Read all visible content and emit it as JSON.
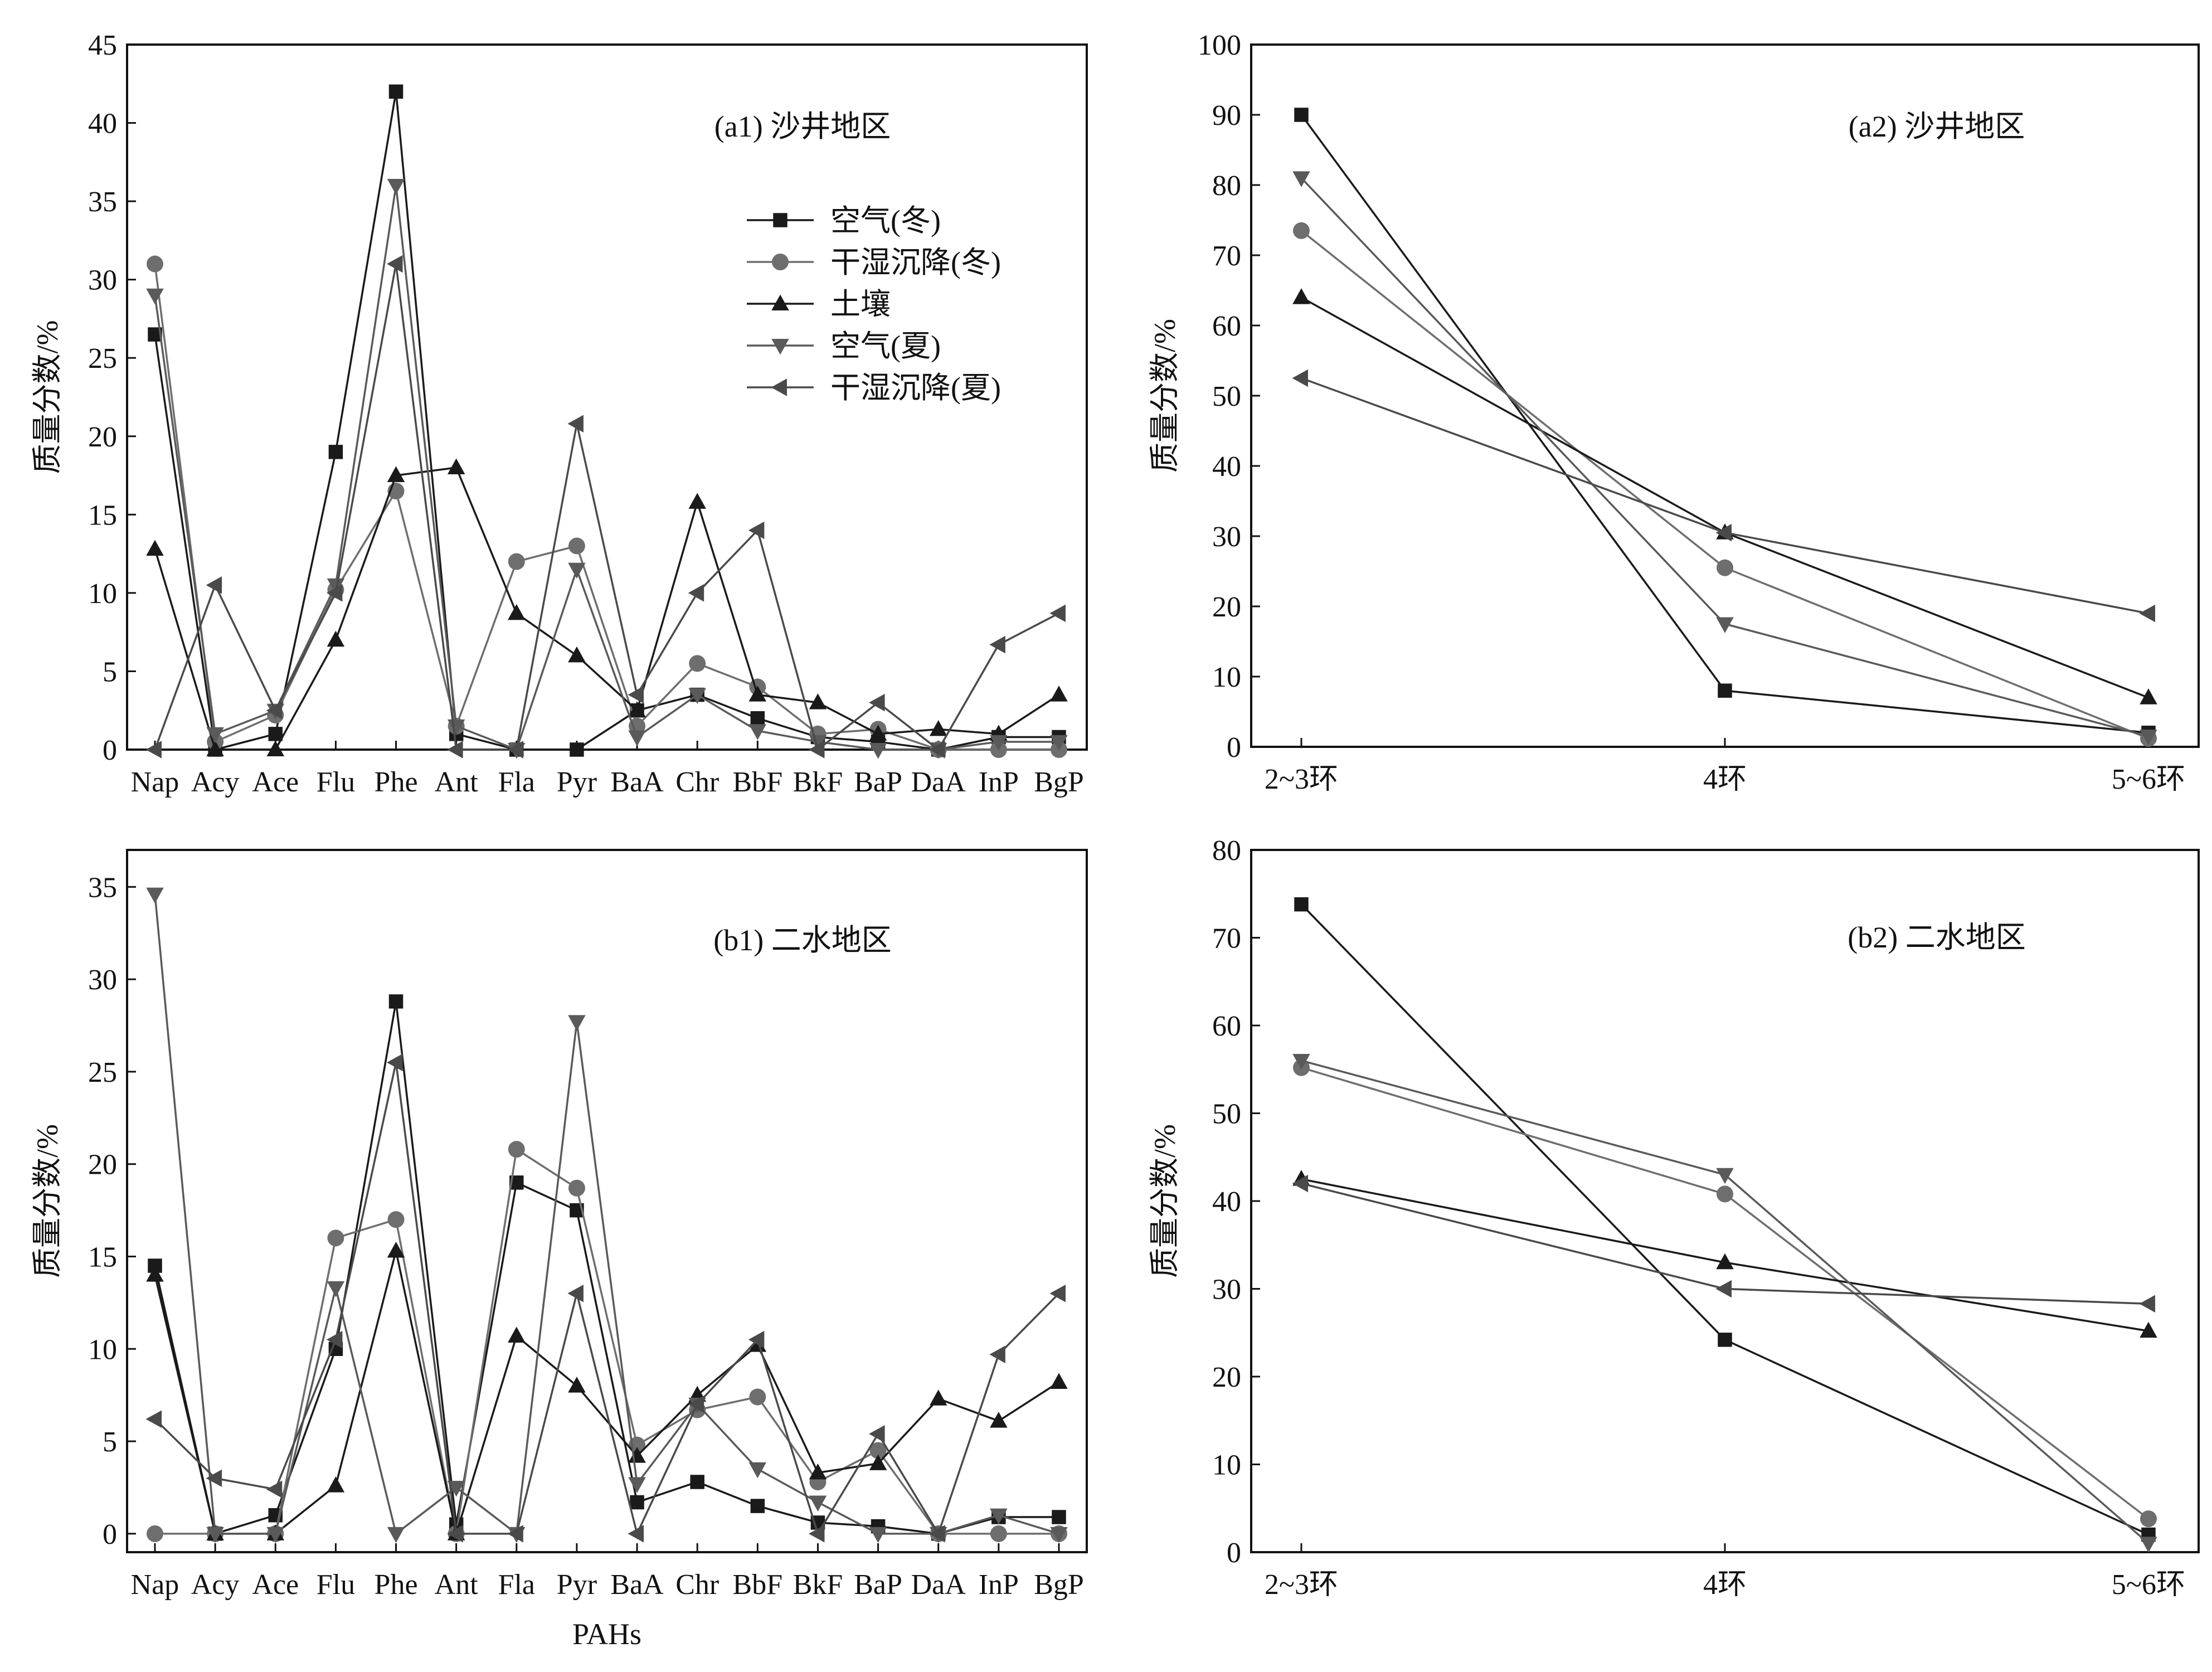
{
  "chart_data": [
    {
      "id": "a1",
      "type": "line",
      "title": "(a1) 沙井地区",
      "xlabel": "",
      "ylabel": "质量分数/%",
      "ylim": [
        0,
        45
      ],
      "yticks": [
        0,
        5,
        10,
        15,
        20,
        25,
        30,
        35,
        40,
        45
      ],
      "categories": [
        "Nap",
        "Acy",
        "Ace",
        "Flu",
        "Phe",
        "Ant",
        "Fla",
        "Pyr",
        "BaA",
        "Chr",
        "BbF",
        "BkF",
        "BaP",
        "DaA",
        "InP",
        "BgP"
      ],
      "legend": {
        "position": "top-right"
      },
      "series": [
        {
          "name": "空气(冬)",
          "marker": "square",
          "color": "#1a1a1a",
          "values": [
            26.5,
            0,
            1,
            19,
            42,
            1,
            0,
            0,
            2.5,
            3.5,
            2,
            0.8,
            0.5,
            0,
            0.8,
            0.8
          ]
        },
        {
          "name": "干湿沉降(冬)",
          "marker": "circle",
          "color": "#6e6e6e",
          "values": [
            31,
            0.5,
            2.2,
            10.2,
            16.5,
            1.5,
            12,
            13,
            1.5,
            5.5,
            4,
            1,
            1.3,
            0,
            0,
            0
          ]
        },
        {
          "name": "土壤",
          "marker": "triangle-up",
          "color": "#1a1a1a",
          "values": [
            12.8,
            0,
            0,
            7,
            17.5,
            18,
            8.7,
            6,
            2.5,
            15.8,
            3.5,
            3,
            1,
            1.3,
            1,
            3.5
          ]
        },
        {
          "name": "空气(夏)",
          "marker": "triangle-down",
          "color": "#5a5a5a",
          "values": [
            29,
            1,
            2.5,
            10.5,
            36,
            1.5,
            0,
            11.5,
            0.8,
            3.5,
            1.2,
            0.5,
            0,
            0,
            0.5,
            0.5
          ]
        },
        {
          "name": "干湿沉降(夏)",
          "marker": "triangle-left",
          "color": "#4a4a4a",
          "values": [
            0,
            10.5,
            2.5,
            10,
            31,
            0,
            0,
            20.8,
            3.5,
            10,
            14,
            0,
            3,
            0,
            6.7,
            8.7
          ]
        }
      ]
    },
    {
      "id": "a2",
      "type": "line",
      "title": "(a2) 沙井地区",
      "xlabel": "",
      "ylabel": "质量分数/%",
      "ylim": [
        0,
        100
      ],
      "yticks": [
        0,
        10,
        20,
        30,
        40,
        50,
        60,
        70,
        80,
        90,
        100
      ],
      "categories": [
        "2~3环",
        "4环",
        "5~6环"
      ],
      "series": [
        {
          "name": "空气(冬)",
          "marker": "square",
          "color": "#1a1a1a",
          "values": [
            90,
            8,
            2
          ]
        },
        {
          "name": "干湿沉降(冬)",
          "marker": "circle",
          "color": "#6e6e6e",
          "values": [
            73.5,
            25.5,
            1.2
          ]
        },
        {
          "name": "土壤",
          "marker": "triangle-up",
          "color": "#1a1a1a",
          "values": [
            64,
            30.5,
            7
          ]
        },
        {
          "name": "空气(夏)",
          "marker": "triangle-down",
          "color": "#5a5a5a",
          "values": [
            81,
            17.5,
            1.5
          ]
        },
        {
          "name": "干湿沉降(夏)",
          "marker": "triangle-left",
          "color": "#4a4a4a",
          "values": [
            52.5,
            30.5,
            19
          ]
        }
      ]
    },
    {
      "id": "b1",
      "type": "line",
      "title": "(b1) 二水地区",
      "xlabel": "PAHs",
      "ylabel": "质量分数/%",
      "ylim": [
        -1,
        37
      ],
      "yticks": [
        0,
        5,
        10,
        15,
        20,
        25,
        30,
        35
      ],
      "categories": [
        "Nap",
        "Acy",
        "Ace",
        "Flu",
        "Phe",
        "Ant",
        "Fla",
        "Pyr",
        "BaA",
        "Chr",
        "BbF",
        "BkF",
        "BaP",
        "DaA",
        "InP",
        "BgP"
      ],
      "series": [
        {
          "name": "空气(冬)",
          "marker": "square",
          "color": "#1a1a1a",
          "values": [
            14.5,
            0,
            1,
            10,
            28.8,
            0.5,
            19,
            17.5,
            1.7,
            2.8,
            1.5,
            0.6,
            0.4,
            0,
            0.9,
            0.9
          ]
        },
        {
          "name": "干湿沉降(冬)",
          "marker": "circle",
          "color": "#6e6e6e",
          "values": [
            0,
            0,
            0,
            16,
            17,
            0,
            20.8,
            18.7,
            4.8,
            6.7,
            7.4,
            2.8,
            4.5,
            0,
            0,
            0
          ]
        },
        {
          "name": "土壤",
          "marker": "triangle-up",
          "color": "#1a1a1a",
          "values": [
            14,
            0,
            0,
            2.6,
            15.3,
            0,
            10.7,
            8,
            4.2,
            7.5,
            10.2,
            3.3,
            3.8,
            7.3,
            6.1,
            8.2
          ]
        },
        {
          "name": "空气(夏)",
          "marker": "triangle-down",
          "color": "#5a5a5a",
          "values": [
            34.6,
            0,
            0,
            13.3,
            0,
            2.5,
            0,
            27.7,
            2.7,
            7,
            3.5,
            1.7,
            0,
            0,
            1,
            0
          ]
        },
        {
          "name": "干湿沉降(夏)",
          "marker": "triangle-left",
          "color": "#4a4a4a",
          "values": [
            6.2,
            3,
            2.4,
            10.5,
            25.5,
            0,
            0,
            13,
            0,
            7,
            10.5,
            0,
            5.4,
            0,
            9.7,
            13
          ]
        }
      ]
    },
    {
      "id": "b2",
      "type": "line",
      "title": "(b2) 二水地区",
      "xlabel": "",
      "ylabel": "质量分数/%",
      "ylim": [
        0,
        80
      ],
      "yticks": [
        0,
        10,
        20,
        30,
        40,
        50,
        60,
        70,
        80
      ],
      "categories": [
        "2~3环",
        "4环",
        "5~6环"
      ],
      "series": [
        {
          "name": "空气(冬)",
          "marker": "square",
          "color": "#1a1a1a",
          "values": [
            73.8,
            24.2,
            2
          ]
        },
        {
          "name": "干湿沉降(冬)",
          "marker": "circle",
          "color": "#6e6e6e",
          "values": [
            55.2,
            40.8,
            3.8
          ]
        },
        {
          "name": "土壤",
          "marker": "triangle-up",
          "color": "#1a1a1a",
          "values": [
            42.5,
            33,
            25.2
          ]
        },
        {
          "name": "空气(夏)",
          "marker": "triangle-down",
          "color": "#5a5a5a",
          "values": [
            56,
            43,
            1
          ]
        },
        {
          "name": "干湿沉降(夏)",
          "marker": "triangle-left",
          "color": "#4a4a4a",
          "values": [
            42,
            30,
            28.3
          ]
        }
      ]
    }
  ]
}
